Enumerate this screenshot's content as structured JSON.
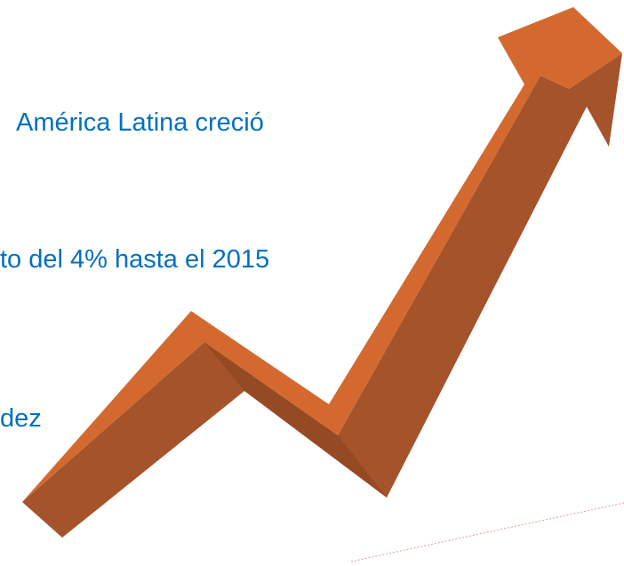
{
  "slide": {
    "lines": [
      "América Latina creció",
      "to del 4% hasta el 2015",
      "dez"
    ]
  }
}
